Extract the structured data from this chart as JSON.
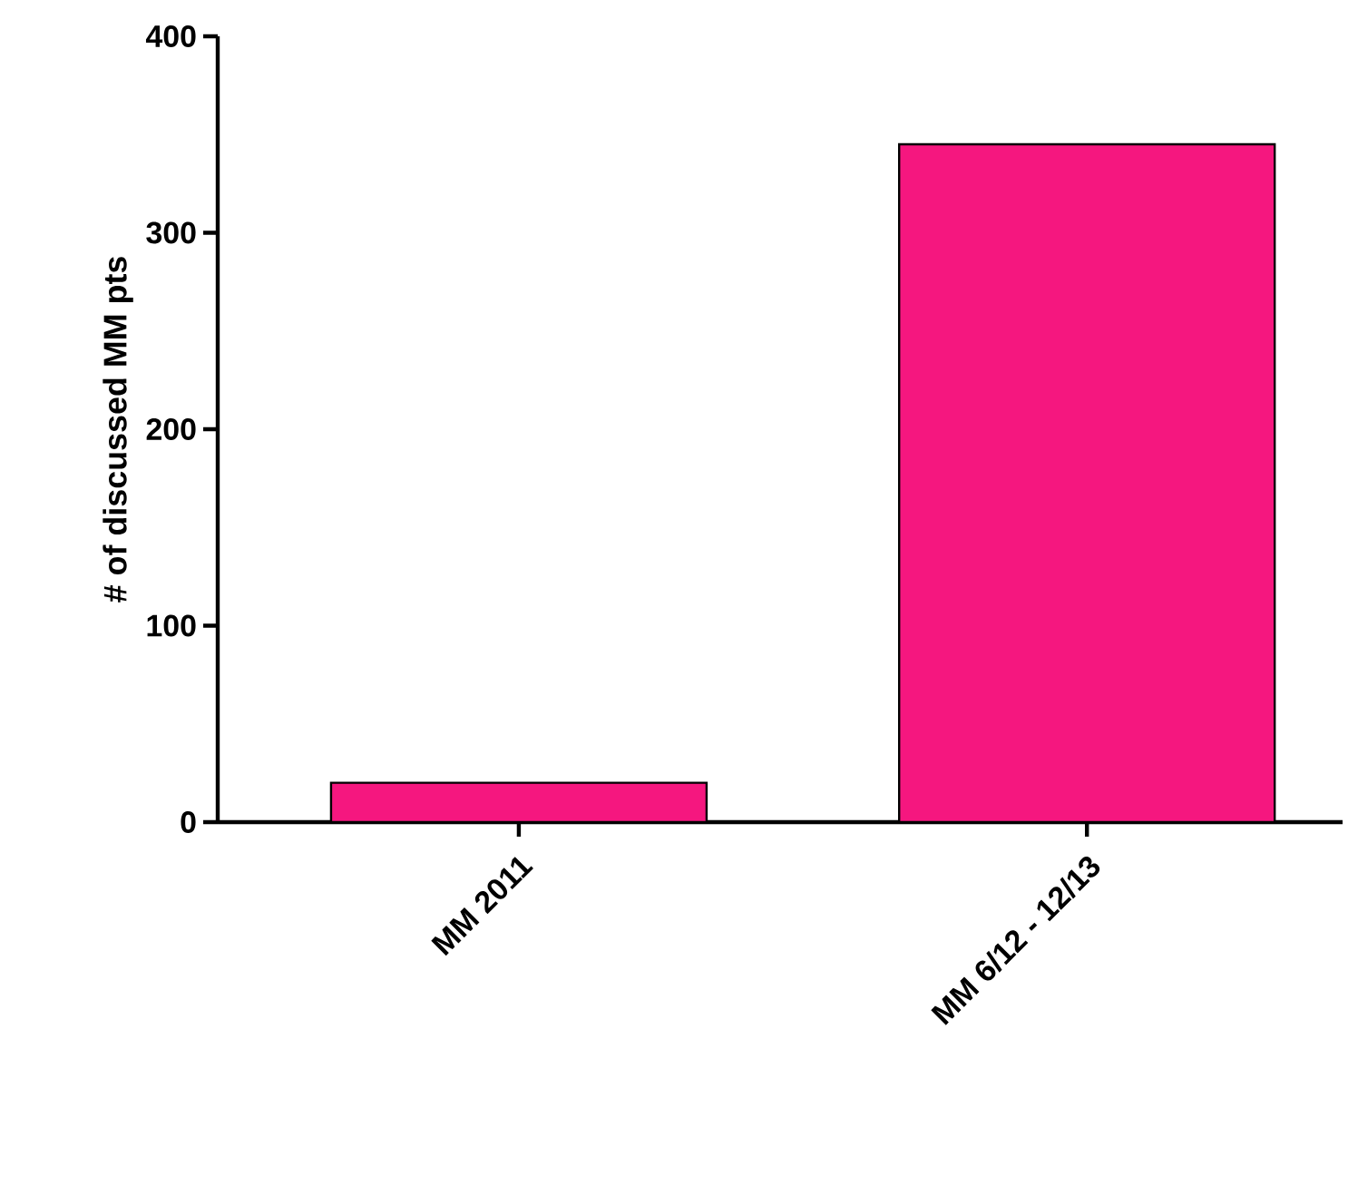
{
  "chart_data": {
    "type": "bar",
    "ylabel": "# of discussed MM pts",
    "categories": [
      "MM 2011",
      "MM 6/12 - 12/13"
    ],
    "values": [
      20,
      345
    ],
    "color": "#f5177f",
    "ylim": [
      0,
      400
    ],
    "yticks": [
      0,
      100,
      200,
      300,
      400
    ],
    "grid": false
  }
}
